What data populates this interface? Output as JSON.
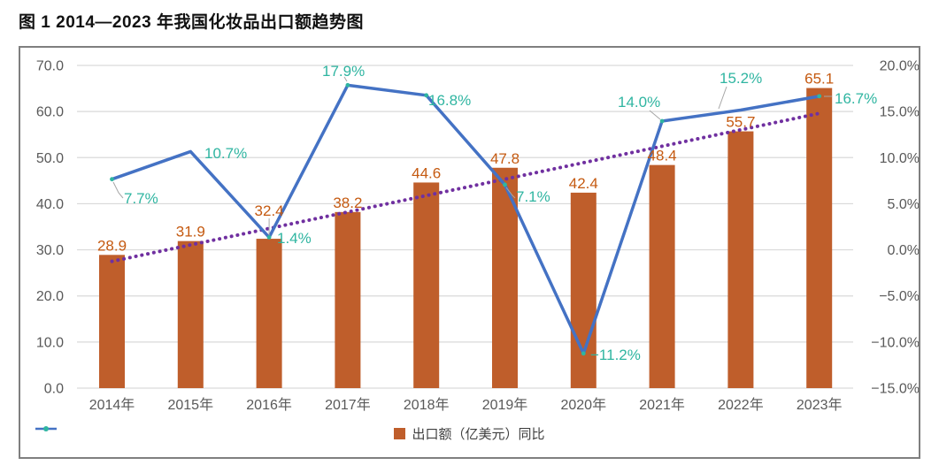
{
  "title": "图 1 2014—2023 年我国化妆品出口额趋势图",
  "chart_data": {
    "type": "combo-bar-line",
    "categories": [
      "2014年",
      "2015年",
      "2016年",
      "2017年",
      "2018年",
      "2019年",
      "2020年",
      "2021年",
      "2022年",
      "2023年"
    ],
    "series": [
      {
        "name": "出口额（亿美元）",
        "type": "bar",
        "axis": "left",
        "values": [
          28.9,
          31.9,
          32.4,
          38.2,
          44.6,
          47.8,
          42.4,
          48.4,
          55.7,
          65.1
        ],
        "labels": [
          "28.9",
          "31.9",
          "32.4",
          "38.2",
          "44.6",
          "47.8",
          "42.4",
          "48.4",
          "55.7",
          "65.1"
        ],
        "color": "#BF5E2B",
        "label_color": "#C55A11"
      },
      {
        "name": "同比",
        "type": "line",
        "axis": "right",
        "values": [
          7.7,
          10.7,
          1.4,
          17.9,
          16.8,
          7.1,
          -11.2,
          14.0,
          15.2,
          16.7
        ],
        "labels": [
          "7.7%",
          "10.7%",
          "1.4%",
          "17.9%",
          "16.8%",
          "7.1%",
          "−11.2%",
          "14.0%",
          "15.2%",
          "16.7%"
        ],
        "color": "#4472C4",
        "label_color": "#2FB5A1"
      },
      {
        "name": "linear-trendline",
        "type": "trendline",
        "axis": "left",
        "endpoint_values": [
          27.5,
          59.6
        ],
        "color": "#7030A0",
        "style": "dotted"
      }
    ],
    "left_axis": {
      "min": 0,
      "max": 70,
      "tick_step": 10,
      "ticks_top_to_bottom": [
        "70.0",
        "60.0",
        "50.0",
        "40.0",
        "30.0",
        "20.0",
        "10.0",
        "0.0"
      ]
    },
    "right_axis": {
      "min": -15,
      "max": 20,
      "tick_step": 5,
      "ticks_top_to_bottom": [
        "20.0%",
        "15.0%",
        "10.0%",
        "5.0%",
        "0.0%",
        "−5.0%",
        "−10.0%",
        "−15.0%"
      ]
    },
    "legend": [
      {
        "label": "出口额（亿美元）",
        "marker": "square",
        "color": "#BF5E2B"
      },
      {
        "label": "同比",
        "marker": "line-dot",
        "color": "#4472C4"
      }
    ],
    "grid": "horizontal",
    "legend_position": "bottom-center",
    "colors": {
      "grid": "#D9D9D9",
      "axis_text": "#595959",
      "border": "#7F7F7F",
      "leader": "#A6A6A6",
      "point_marker": "#2FB5A1"
    }
  }
}
